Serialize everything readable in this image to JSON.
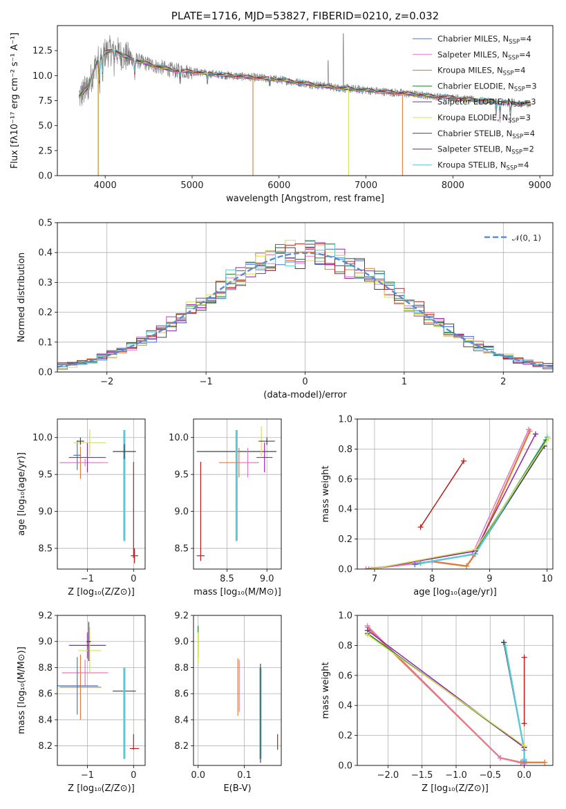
{
  "chart_data": [
    {
      "id": "spectrum",
      "type": "line",
      "title": "PLATE=1716, MJD=53827, FIBERID=0210, z=0.032",
      "xlabel": "wavelength [Angstrom, rest frame]",
      "ylabel": "Flux [fλ10⁻¹⁷ erg cm⁻² s⁻¹ A⁻¹]",
      "xlim": [
        3450,
        9150
      ],
      "ylim": [
        0,
        15
      ],
      "xticks": [
        "4000",
        "5000",
        "6000",
        "7000",
        "8000",
        "9000"
      ],
      "yticks": [
        "0.0",
        "2.5",
        "5.0",
        "7.5",
        "10.0",
        "12.5"
      ],
      "grid": false,
      "legend_position": "top-right",
      "legend": [
        {
          "name": "Chabrier MILES, N_SSP=4",
          "base": "Chabrier MILES, N",
          "sub": "SSP",
          "tail": "=4",
          "color": "#4c72d0"
        },
        {
          "name": "Salpeter MILES, N_SSP=4",
          "base": "Salpeter MILES, N",
          "sub": "SSP",
          "tail": "=4",
          "color": "#e377c2"
        },
        {
          "name": "Kroupa MILES, N_SSP=4",
          "base": "Kroupa MILES, N",
          "sub": "SSP",
          "tail": "=4",
          "color": "#b8860b"
        },
        {
          "name": "Chabrier ELODIE, N_SSP=3",
          "base": "Chabrier ELODIE, N",
          "sub": "SSP",
          "tail": "=3",
          "color": "#2e7d32"
        },
        {
          "name": "Salpeter ELODIE, N_SSP=3",
          "base": "Salpeter ELODIE, N",
          "sub": "SSP",
          "tail": "=3",
          "color": "#8e24aa"
        },
        {
          "name": "Kroupa ELODIE, N_SSP=3",
          "base": "Kroupa ELODIE, N",
          "sub": "SSP",
          "tail": "=3",
          "color": "#d4e157"
        },
        {
          "name": "Chabrier STELIB, N_SSP=4",
          "base": "Chabrier STELIB, N",
          "sub": "SSP",
          "tail": "=4",
          "color": "#424242"
        },
        {
          "name": "Salpeter STELIB, N_SSP=2",
          "base": "Salpeter STELIB, N",
          "sub": "SSP",
          "tail": "=2",
          "color": "#b71c1c"
        },
        {
          "name": "Kroupa STELIB, N_SSP=4",
          "base": "Kroupa STELIB, N",
          "sub": "SSP",
          "tail": "=4",
          "color": "#5bc8d8"
        }
      ],
      "data_color": "#808080",
      "continuum": {
        "x": [
          3700,
          3800,
          3900,
          4000,
          4100,
          4200,
          4400,
          4600,
          4800,
          5000,
          5200,
          5500,
          5800,
          6000,
          6200,
          6400,
          6600,
          6800,
          7000,
          7200,
          7400,
          7600,
          7800,
          8000,
          8200,
          8400,
          8600,
          8800,
          8900
        ],
        "y": [
          7.9,
          8.8,
          11.3,
          12.3,
          12.6,
          12.0,
          11.4,
          10.9,
          10.5,
          10.4,
          10.2,
          9.95,
          9.75,
          9.6,
          9.35,
          9.1,
          8.85,
          8.7,
          8.55,
          8.4,
          8.25,
          8.1,
          7.9,
          7.8,
          7.6,
          7.45,
          7.3,
          7.2,
          7.15
        ]
      },
      "absorption_dips": [
        {
          "x": 3934,
          "depth": 3.0
        },
        {
          "x": 3969,
          "depth": 2.5
        },
        {
          "x": 4102,
          "depth": 1.5
        },
        {
          "x": 4340,
          "depth": 1.8
        },
        {
          "x": 4861,
          "depth": 1.0
        },
        {
          "x": 5175,
          "depth": 1.2
        },
        {
          "x": 5893,
          "depth": 0.8
        },
        {
          "x": 8498,
          "depth": 1.5
        },
        {
          "x": 8542,
          "depth": 2.0
        },
        {
          "x": 8662,
          "depth": 1.8
        }
      ],
      "model_drops": [
        {
          "x": 3920,
          "color": "#b8860b"
        },
        {
          "x": 5700,
          "color": "#e07b39"
        },
        {
          "x": 6800,
          "color": "#d4e157"
        },
        {
          "x": 7420,
          "color": "#e07b39"
        }
      ],
      "emission_spikes": [
        {
          "x": 6740,
          "peak": 14.2
        },
        {
          "x": 6565,
          "peak": 11.5
        }
      ]
    },
    {
      "id": "residuals",
      "type": "step",
      "xlabel": "(data-model)/error",
      "ylabel": "Normed distribution",
      "xlim": [
        -2.5,
        2.5
      ],
      "ylim": [
        0,
        0.5
      ],
      "xticks": [
        "−2",
        "−1",
        "0",
        "1",
        "2"
      ],
      "yticks": [
        "0.0",
        "0.1",
        "0.2",
        "0.3",
        "0.4",
        "0.5"
      ],
      "grid": true,
      "legend_position": "top-right",
      "legend_label": "𝒩(0, 1)",
      "gaussian_color": "#5b8bd6",
      "bin_width": 0.1,
      "bin_start": -2.5,
      "series_colors": [
        "#4c72d0",
        "#e377c2",
        "#e07b39",
        "#2e7d32",
        "#8e24aa",
        "#d4e157",
        "#424242",
        "#b71c1c",
        "#5bc8d8"
      ]
    },
    {
      "id": "age-vs-Z",
      "type": "errorbar",
      "xlabel": "Z [log₁₀(Z/Z⊙)]",
      "ylabel": "age  [log₁₀(age/yr)]",
      "xlim": [
        -1.65,
        0.25
      ],
      "ylim": [
        8.22,
        10.25
      ],
      "xticks": [
        "−1",
        "0"
      ],
      "yticks": [
        "8.5",
        "9.0",
        "9.5",
        "10.0"
      ],
      "grid": true,
      "points": [
        {
          "x": -1.15,
          "y": 9.66,
          "xe": 0.45,
          "ye": 0.22,
          "color": "#e07b39"
        },
        {
          "x": -1.05,
          "y": 9.66,
          "xe": 0.5,
          "ye": 0.05,
          "color": "#e377c2"
        },
        {
          "x": -1.22,
          "y": 9.76,
          "xe": 0.08,
          "ye": 0.2,
          "color": "#4c72d0"
        },
        {
          "x": -1.0,
          "y": 9.73,
          "xe": 0.4,
          "ye": 0.2,
          "color": "#8e24aa"
        },
        {
          "x": -0.95,
          "y": 9.93,
          "xe": 0.35,
          "ye": 0.18,
          "color": "#d4e157"
        },
        {
          "x": -1.15,
          "y": 9.95,
          "xe": 0.08,
          "ye": 0.05,
          "color": "#424242"
        },
        {
          "x": -0.2,
          "y": 9.35,
          "xe": 0.02,
          "ye": 0.75,
          "color": "#5bc8d8"
        },
        {
          "x": -0.2,
          "y": 9.81,
          "xe": 0.25,
          "ye": 0.1,
          "color": "#424242"
        },
        {
          "x": 0.02,
          "y": 8.4,
          "xe": 0.08,
          "ye": 0.1,
          "color": "#b71c1c"
        },
        {
          "x": 0.0,
          "y": 9.02,
          "xe": 0.01,
          "ye": 0.65,
          "color": "#b71c1c"
        }
      ]
    },
    {
      "id": "age-vs-mass",
      "type": "errorbar",
      "xlabel": "mass [log₁₀(M/M⊙)]",
      "ylabel": "",
      "xlim": [
        8.08,
        9.18
      ],
      "ylim": [
        8.22,
        10.25
      ],
      "xticks": [
        "8.5",
        "9.0"
      ],
      "yticks": [
        "8.5",
        "9.0",
        "9.5",
        "10.0"
      ],
      "grid": true,
      "points": [
        {
          "x": 8.62,
          "y": 9.81,
          "xe": 0.5,
          "ye": 0.02,
          "color": "#424242"
        },
        {
          "x": 8.62,
          "y": 9.35,
          "xe": 0.01,
          "ye": 0.75,
          "color": "#5bc8d8"
        },
        {
          "x": 8.65,
          "y": 9.66,
          "xe": 0.25,
          "ye": 0.2,
          "color": "#e07b39"
        },
        {
          "x": 8.76,
          "y": 9.66,
          "xe": 0.12,
          "ye": 0.2,
          "color": "#e377c2"
        },
        {
          "x": 8.97,
          "y": 9.73,
          "xe": 0.1,
          "ye": 0.2,
          "color": "#8e24aa"
        },
        {
          "x": 8.93,
          "y": 9.95,
          "xe": 0.05,
          "ye": 0.2,
          "color": "#d4e157"
        },
        {
          "x": 9.0,
          "y": 9.95,
          "xe": 0.1,
          "ye": 0.05,
          "color": "#424242"
        },
        {
          "x": 8.17,
          "y": 8.4,
          "xe": 0.05,
          "ye": 0.0,
          "color": "#b71c1c"
        },
        {
          "x": 8.17,
          "y": 9.0,
          "xe": 0.0,
          "ye": 0.67,
          "color": "#b71c1c"
        }
      ]
    },
    {
      "id": "massweight-vs-age",
      "type": "line",
      "xlabel": "age  [log₁₀(age/yr)]",
      "ylabel": "mass weight",
      "xlim": [
        6.7,
        10.1
      ],
      "ylim": [
        0,
        1
      ],
      "xticks": [
        "7",
        "8",
        "9",
        "10"
      ],
      "yticks": [
        "0.0",
        "0.2",
        "0.4",
        "0.6",
        "0.8",
        "1.0"
      ],
      "grid": true,
      "series": [
        {
          "color": "#b71c1c",
          "x": [
            7.8,
            8.55
          ],
          "y": [
            0.28,
            0.72
          ]
        },
        {
          "color": "#e07b39",
          "x": [
            6.85,
            8.0,
            8.6,
            8.75,
            9.7
          ],
          "y": [
            0.0,
            0.05,
            0.02,
            0.1,
            0.92
          ]
        },
        {
          "color": "#e377c2",
          "x": [
            6.9,
            8.0,
            8.7,
            9.68
          ],
          "y": [
            0.0,
            0.05,
            0.1,
            0.93
          ]
        },
        {
          "color": "#4c72d0",
          "x": [
            7.7,
            8.75,
            9.95
          ],
          "y": [
            0.03,
            0.1,
            0.82
          ]
        },
        {
          "color": "#424242",
          "x": [
            7.8,
            8.75,
            9.95
          ],
          "y": [
            0.04,
            0.1,
            0.82
          ]
        },
        {
          "color": "#5bc8d8",
          "x": [
            7.8,
            8.75,
            10.0
          ],
          "y": [
            0.04,
            0.1,
            0.88
          ]
        },
        {
          "color": "#2e7d32",
          "x": [
            6.95,
            8.75,
            9.98
          ],
          "y": [
            0.0,
            0.12,
            0.86
          ]
        },
        {
          "color": "#8e24aa",
          "x": [
            6.95,
            8.75,
            9.8
          ],
          "y": [
            0.0,
            0.12,
            0.9
          ]
        },
        {
          "color": "#d4e157",
          "x": [
            6.95,
            8.75,
            10.02
          ],
          "y": [
            0.0,
            0.13,
            0.87
          ]
        }
      ]
    },
    {
      "id": "mass-vs-Z",
      "type": "errorbar",
      "xlabel": "Z [log₁₀(Z/Z⊙)]",
      "ylabel": "mass [log₁₀(M/M⊙)]",
      "xlim": [
        -1.65,
        0.25
      ],
      "ylim": [
        8.05,
        9.2
      ],
      "xticks": [
        "−1",
        "0"
      ],
      "yticks": [
        "8.2",
        "8.4",
        "8.6",
        "8.8",
        "9.0",
        "9.2"
      ],
      "grid": true,
      "points": [
        {
          "x": -1.15,
          "y": 8.65,
          "xe": 0.45,
          "ye": 0.25,
          "color": "#e07b39"
        },
        {
          "x": -1.05,
          "y": 8.76,
          "xe": 0.5,
          "ye": 0.1,
          "color": "#e377c2"
        },
        {
          "x": -1.22,
          "y": 8.66,
          "xe": 0.45,
          "ye": 0.22,
          "color": "#4c72d0"
        },
        {
          "x": -1.0,
          "y": 8.97,
          "xe": 0.4,
          "ye": 0.1,
          "color": "#8e24aa"
        },
        {
          "x": -0.95,
          "y": 8.93,
          "xe": 0.25,
          "ye": 0.18,
          "color": "#d4e157"
        },
        {
          "x": -0.97,
          "y": 9.0,
          "xe": 0.05,
          "ye": 0.15,
          "color": "#424242"
        },
        {
          "x": -0.2,
          "y": 8.62,
          "xe": 0.25,
          "ye": 0.0,
          "color": "#424242"
        },
        {
          "x": -0.2,
          "y": 8.45,
          "xe": 0.02,
          "ye": 0.35,
          "color": "#5bc8d8"
        },
        {
          "x": 0.02,
          "y": 8.18,
          "xe": 0.1,
          "ye": 0.0,
          "color": "#b71c1c"
        },
        {
          "x": 0.0,
          "y": 8.23,
          "xe": 0.0,
          "ye": 0.06,
          "color": "#b71c1c"
        }
      ]
    },
    {
      "id": "mass-vs-ebv",
      "type": "errorbar",
      "xlabel": "E(B-V)",
      "ylabel": "",
      "xlim": [
        -0.01,
        0.18
      ],
      "ylim": [
        8.05,
        9.2
      ],
      "xticks": [
        "0.0",
        "0.1"
      ],
      "yticks": [
        "8.2",
        "8.4",
        "8.6",
        "8.8",
        "9.0",
        "9.2"
      ],
      "grid": true,
      "points": [
        {
          "x": 0.0,
          "y": 9.0,
          "xe": 0.0,
          "ye": 0.12,
          "color": "#2e7d32"
        },
        {
          "x": 0.0,
          "y": 8.95,
          "xe": 0.0,
          "ye": 0.12,
          "color": "#d4e157"
        },
        {
          "x": 0.086,
          "y": 8.65,
          "xe": 0.0,
          "ye": 0.22,
          "color": "#e07b39"
        },
        {
          "x": 0.089,
          "y": 8.66,
          "xe": 0.0,
          "ye": 0.2,
          "color": "#e377c2"
        },
        {
          "x": 0.135,
          "y": 8.45,
          "xe": 0.0,
          "ye": 0.35,
          "color": "#5bc8d8"
        },
        {
          "x": 0.135,
          "y": 8.45,
          "xe": 0.0,
          "ye": 0.38,
          "color": "#424242"
        },
        {
          "x": 0.172,
          "y": 8.23,
          "xe": 0.0,
          "ye": 0.06,
          "color": "#b71c1c"
        }
      ]
    },
    {
      "id": "massweight-vs-Z",
      "type": "line",
      "xlabel": "Z [log₁₀(Z/Z⊙)]",
      "ylabel": "mass weight",
      "xlim": [
        -2.45,
        0.42
      ],
      "ylim": [
        0,
        1
      ],
      "xticks": [
        "−2.0",
        "−1.5",
        "−1.0",
        "−0.5",
        "0.0"
      ],
      "xtick_values": [
        -2.0,
        -1.5,
        -1.0,
        -0.5,
        0.0
      ],
      "yticks": [
        "0.0",
        "0.2",
        "0.4",
        "0.6",
        "0.8",
        "1.0"
      ],
      "grid": true,
      "series": [
        {
          "color": "#b71c1c",
          "x": [
            0.0,
            0.0
          ],
          "y": [
            0.28,
            0.72
          ]
        },
        {
          "color": "#e07b39",
          "x": [
            -2.3,
            -0.35,
            -0.05,
            0.3
          ],
          "y": [
            0.92,
            0.05,
            0.02,
            0.02
          ]
        },
        {
          "color": "#e377c2",
          "x": [
            -2.3,
            -0.35,
            0.0
          ],
          "y": [
            0.93,
            0.05,
            0.01
          ]
        },
        {
          "color": "#4c72d0",
          "x": [
            -0.3,
            0.0,
            0.0
          ],
          "y": [
            0.82,
            0.1,
            0.03
          ]
        },
        {
          "color": "#424242",
          "x": [
            -0.3,
            0.0,
            0.0
          ],
          "y": [
            0.82,
            0.1,
            0.04
          ]
        },
        {
          "color": "#5bc8d8",
          "x": [
            -0.28,
            0.0,
            0.0
          ],
          "y": [
            0.8,
            0.1,
            0.04
          ]
        },
        {
          "color": "#2e7d32",
          "x": [
            -2.3,
            0.0
          ],
          "y": [
            0.88,
            0.12
          ]
        },
        {
          "color": "#8e24aa",
          "x": [
            -2.3,
            0.0
          ],
          "y": [
            0.9,
            0.12
          ]
        },
        {
          "color": "#d4e157",
          "x": [
            -2.3,
            0.0
          ],
          "y": [
            0.87,
            0.13
          ]
        }
      ]
    }
  ]
}
